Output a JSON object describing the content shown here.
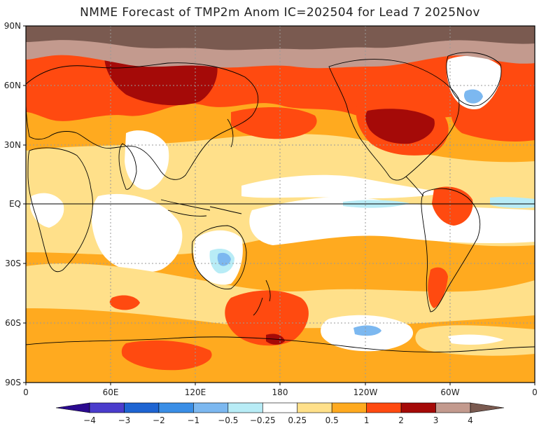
{
  "title": "NMME Forecast of TMP2m Anom IC=202504 for Lead 7 2025Nov",
  "lat_labels": [
    "90N",
    "60N",
    "30N",
    "EQ",
    "30S",
    "60S",
    "90S"
  ],
  "lon_labels": [
    "0",
    "60E",
    "120E",
    "180",
    "120W",
    "60W",
    "0"
  ],
  "colorbar": {
    "bins": [
      {
        "color": "#2b0a8f"
      },
      {
        "color": "#4a3ccc"
      },
      {
        "color": "#1e64d2"
      },
      {
        "color": "#3a8ee6"
      },
      {
        "color": "#7cb8f0"
      },
      {
        "color": "#b8ecf6"
      },
      {
        "color": "#ffffff"
      },
      {
        "color": "#ffe08a"
      },
      {
        "color": "#ffaa1f"
      },
      {
        "color": "#ff4a10"
      },
      {
        "color": "#a50a08"
      },
      {
        "color": "#c39a8e"
      },
      {
        "color": "#7a5a50"
      }
    ],
    "labels": [
      "−4",
      "−3",
      "−2",
      "−1",
      "−0.5",
      "−0.25",
      "0.25",
      "0.5",
      "1",
      "2",
      "3",
      "4"
    ]
  },
  "colors": {
    "neutral": "#ffffff",
    "light_warm": "#ffe08a",
    "warm": "#ffaa1f",
    "hot": "#ff4a10",
    "very_hot": "#a50a08",
    "extreme": "#c39a8e",
    "max": "#7a5a50",
    "light_cool": "#b8ecf6",
    "cool": "#7cb8f0",
    "coast": "#000000"
  }
}
